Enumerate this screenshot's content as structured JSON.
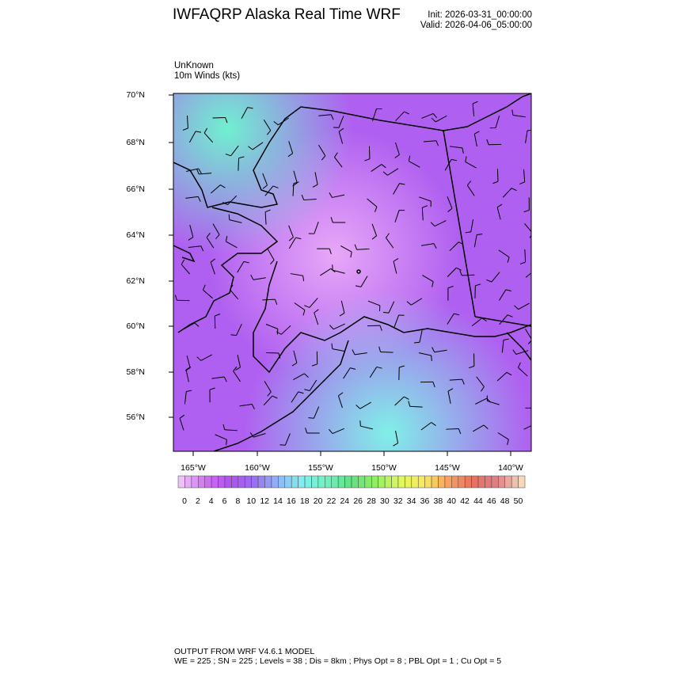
{
  "header": {
    "title": "IWFAQRP Alaska Real Time WRF",
    "init": "Init: 2026-03-31_00:00:00",
    "valid": "Valid: 2026-04-06_05:00:00"
  },
  "field": {
    "name": "UnKnown",
    "label": "10m Winds   (kts)"
  },
  "axes": {
    "lat_labels": [
      "70°N",
      "68°N",
      "66°N",
      "64°N",
      "62°N",
      "60°N",
      "58°N",
      "56°N"
    ],
    "lon_labels": [
      "165°W",
      "160°W",
      "155°W",
      "150°W",
      "145°W",
      "140°W"
    ]
  },
  "colorbar": {
    "labels": [
      "0",
      "2",
      "4",
      "6",
      "8",
      "10",
      "12",
      "14",
      "16",
      "18",
      "20",
      "22",
      "24",
      "26",
      "28",
      "30",
      "32",
      "34",
      "36",
      "38",
      "40",
      "42",
      "44",
      "46",
      "48",
      "50"
    ],
    "color_stops": [
      "#f0c0f8",
      "#d070f0",
      "#b050f0",
      "#9a70f0",
      "#90b8f8",
      "#80f0f0",
      "#70f0c0",
      "#60e080",
      "#90f060",
      "#e0f860",
      "#f8e860",
      "#f8a060",
      "#e87060",
      "#e08088",
      "#f8d8b8"
    ]
  },
  "footer": {
    "line1": "OUTPUT FROM WRF V4.6.1 MODEL",
    "line2": "WE = 225 ; SN = 225 ; Levels = 38 ; Dis = 8km ; Phys Opt = 8 ; PBL Opt = 1 ; Cu Opt = 5"
  }
}
